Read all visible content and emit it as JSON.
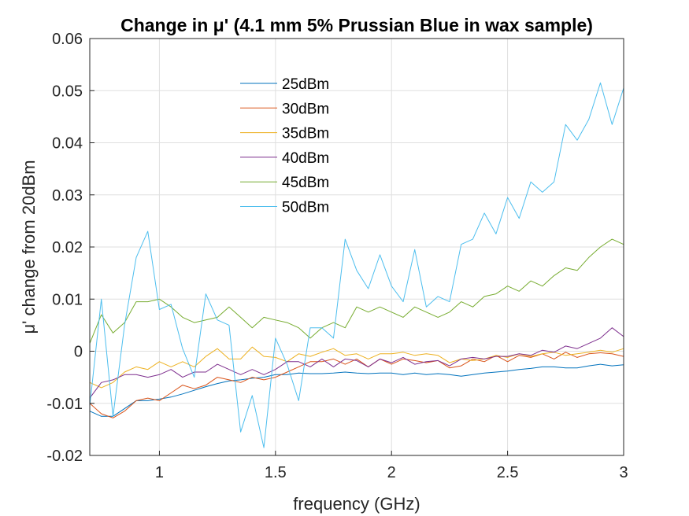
{
  "chart_data": {
    "type": "line",
    "title": "Change in μ' (4.1 mm 5% Prussian Blue in wax sample)",
    "xlabel": "frequency (GHz)",
    "ylabel": "μ' change from 20dBm",
    "xlim": [
      0.7,
      3.0
    ],
    "ylim": [
      -0.02,
      0.06
    ],
    "xticks": [
      1,
      1.5,
      2,
      2.5,
      3
    ],
    "xtick_labels": [
      "1",
      "1.5",
      "2",
      "2.5",
      "3"
    ],
    "yticks": [
      -0.02,
      -0.01,
      0,
      0.01,
      0.02,
      0.03,
      0.04,
      0.05,
      0.06
    ],
    "ytick_labels": [
      "-0.02",
      "-0.01",
      "0",
      "0.01",
      "0.02",
      "0.03",
      "0.04",
      "0.05",
      "0.06"
    ],
    "grid": true,
    "legend": "upper-center",
    "x": [
      0.7,
      0.75,
      0.8,
      0.85,
      0.9,
      0.95,
      1.0,
      1.05,
      1.1,
      1.15,
      1.2,
      1.25,
      1.3,
      1.35,
      1.4,
      1.45,
      1.5,
      1.55,
      1.6,
      1.65,
      1.7,
      1.75,
      1.8,
      1.85,
      1.9,
      1.95,
      2.0,
      2.05,
      2.1,
      2.15,
      2.2,
      2.25,
      2.3,
      2.35,
      2.4,
      2.45,
      2.5,
      2.55,
      2.6,
      2.65,
      2.7,
      2.75,
      2.8,
      2.85,
      2.9,
      2.95,
      3.0
    ],
    "series": [
      {
        "name": "25dBm",
        "color": "#0072BD",
        "values": [
          -0.0115,
          -0.0125,
          -0.0125,
          -0.011,
          -0.0095,
          -0.0095,
          -0.0092,
          -0.0088,
          -0.0082,
          -0.0075,
          -0.0068,
          -0.0062,
          -0.0057,
          -0.0055,
          -0.0052,
          -0.005,
          -0.0045,
          -0.0045,
          -0.0042,
          -0.0043,
          -0.0043,
          -0.0042,
          -0.004,
          -0.0042,
          -0.0043,
          -0.0042,
          -0.0042,
          -0.0045,
          -0.0042,
          -0.0045,
          -0.0043,
          -0.0045,
          -0.0048,
          -0.0045,
          -0.0042,
          -0.004,
          -0.0038,
          -0.0035,
          -0.0033,
          -0.003,
          -0.003,
          -0.0032,
          -0.0032,
          -0.0028,
          -0.0025,
          -0.0028,
          -0.0026
        ]
      },
      {
        "name": "30dBm",
        "color": "#D95319",
        "values": [
          -0.01,
          -0.012,
          -0.0128,
          -0.0115,
          -0.0095,
          -0.009,
          -0.0095,
          -0.008,
          -0.0065,
          -0.0072,
          -0.0065,
          -0.005,
          -0.0055,
          -0.006,
          -0.005,
          -0.0055,
          -0.005,
          -0.004,
          -0.003,
          -0.002,
          -0.002,
          -0.0015,
          -0.0025,
          -0.0015,
          -0.003,
          -0.0015,
          -0.0025,
          -0.0015,
          -0.0018,
          -0.0022,
          -0.0018,
          -0.0032,
          -0.0028,
          -0.0015,
          -0.002,
          -0.0008,
          -0.002,
          -0.0008,
          -0.0012,
          -0.0005,
          -0.0015,
          -0.0002,
          -0.0012,
          -0.0005,
          -0.0003,
          -0.0005,
          -0.001
        ]
      },
      {
        "name": "35dBm",
        "color": "#EDB120",
        "values": [
          -0.006,
          -0.007,
          -0.006,
          -0.004,
          -0.003,
          -0.0035,
          -0.002,
          -0.003,
          -0.002,
          -0.003,
          -0.001,
          0.0005,
          -0.0015,
          -0.0015,
          0.0008,
          -0.001,
          -0.0012,
          -0.002,
          -0.0005,
          -0.001,
          -0.0002,
          0.0005,
          -0.0008,
          -0.0005,
          -0.0015,
          -0.0005,
          -0.0005,
          -0.0002,
          -0.0008,
          -0.0005,
          -0.0008,
          -0.0022,
          -0.0015,
          -0.0018,
          -0.0015,
          -0.0008,
          -0.0012,
          -0.0005,
          -0.001,
          -0.0005,
          -0.0002,
          -0.0008,
          -0.0005,
          -0.0002,
          0.0002,
          -0.0002,
          0.0005
        ]
      },
      {
        "name": "40dBm",
        "color": "#7E2F8E",
        "values": [
          -0.009,
          -0.006,
          -0.0055,
          -0.0045,
          -0.0045,
          -0.005,
          -0.0045,
          -0.0035,
          -0.005,
          -0.004,
          -0.004,
          -0.0025,
          -0.0035,
          -0.0045,
          -0.0035,
          -0.0045,
          -0.0035,
          -0.002,
          -0.002,
          -0.003,
          -0.0015,
          -0.003,
          -0.0015,
          -0.0018,
          -0.003,
          -0.0015,
          -0.0022,
          -0.0012,
          -0.0025,
          -0.002,
          -0.0018,
          -0.0028,
          -0.0015,
          -0.0012,
          -0.0015,
          -0.001,
          -0.001,
          -0.0005,
          -0.0008,
          0.0002,
          -0.0002,
          0.001,
          0.0005,
          0.0015,
          0.0025,
          0.0045,
          0.0028
        ]
      },
      {
        "name": "45dBm",
        "color": "#77AC30",
        "values": [
          0.0015,
          0.007,
          0.0035,
          0.0055,
          0.0095,
          0.0095,
          0.01,
          0.0085,
          0.0065,
          0.0055,
          0.006,
          0.0065,
          0.0085,
          0.0065,
          0.0045,
          0.0065,
          0.006,
          0.0055,
          0.0045,
          0.0025,
          0.0045,
          0.0055,
          0.0045,
          0.0085,
          0.0075,
          0.0085,
          0.0075,
          0.0065,
          0.0085,
          0.0075,
          0.0065,
          0.0075,
          0.0095,
          0.0085,
          0.0105,
          0.011,
          0.0125,
          0.0115,
          0.0135,
          0.0125,
          0.0145,
          0.016,
          0.0155,
          0.018,
          0.02,
          0.0215,
          0.0205
        ]
      },
      {
        "name": "50dBm",
        "color": "#4DBEEE",
        "values": [
          -0.0105,
          0.01,
          -0.0125,
          0.005,
          0.018,
          0.023,
          0.008,
          0.009,
          0.0005,
          -0.005,
          0.011,
          0.006,
          0.005,
          -0.0155,
          -0.0085,
          -0.0185,
          0.0025,
          -0.0025,
          -0.0095,
          0.0045,
          0.0045,
          0.0025,
          0.0215,
          0.0155,
          0.012,
          0.0185,
          0.0125,
          0.0095,
          0.0195,
          0.0085,
          0.0105,
          0.0095,
          0.0205,
          0.0215,
          0.0265,
          0.0225,
          0.0295,
          0.0255,
          0.0325,
          0.0305,
          0.0325,
          0.0435,
          0.0405,
          0.0445,
          0.0515,
          0.0435,
          0.0505
        ]
      }
    ]
  }
}
